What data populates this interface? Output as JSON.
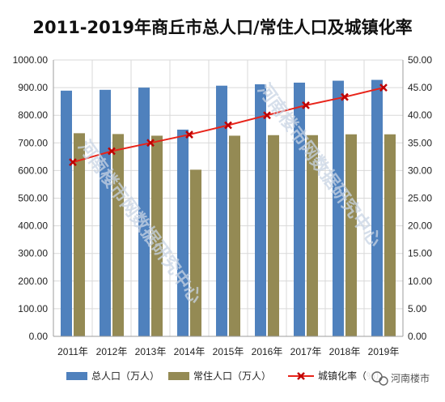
{
  "chart_data": {
    "type": "bar",
    "title": "2011-2019年商丘市总人口/常住人口及城镇化率",
    "categories": [
      "2011年",
      "2012年",
      "2013年",
      "2014年",
      "2015年",
      "2016年",
      "2017年",
      "2018年",
      "2019年"
    ],
    "series": [
      {
        "name": "总人口（万人）",
        "type": "bar",
        "axis": "left",
        "color": "#4f81bd",
        "values": [
          889,
          892,
          900,
          748,
          907,
          912,
          918,
          925,
          928
        ]
      },
      {
        "name": "常住人口（万人）",
        "type": "bar",
        "axis": "left",
        "color": "#948a54",
        "values": [
          735,
          732,
          726,
          603,
          726,
          728,
          728,
          731,
          731
        ]
      },
      {
        "name": "城镇化率（%）",
        "type": "line",
        "axis": "right",
        "color": "#e8241a",
        "marker_color": "#c00000",
        "values": [
          31.5,
          33.5,
          35.0,
          36.5,
          38.2,
          40.0,
          41.8,
          43.3,
          45.0
        ]
      }
    ],
    "y_left": {
      "min": 0,
      "max": 1000,
      "step": 100,
      "ticks": [
        "0.00",
        "100.00",
        "200.00",
        "300.00",
        "400.00",
        "500.00",
        "600.00",
        "700.00",
        "800.00",
        "900.00",
        "1000.00"
      ]
    },
    "y_right": {
      "min": 0,
      "max": 50,
      "step": 5,
      "ticks": [
        "0.00",
        "5.00",
        "10.00",
        "15.00",
        "20.00",
        "25.00",
        "30.00",
        "35.00",
        "40.00",
        "45.00",
        "50.00"
      ]
    },
    "grid": true,
    "legend_position": "bottom"
  },
  "watermark": {
    "text": "河南楼市网数据研究中心"
  },
  "badge": {
    "icon": "wechat-icon",
    "text": "河南楼市"
  }
}
